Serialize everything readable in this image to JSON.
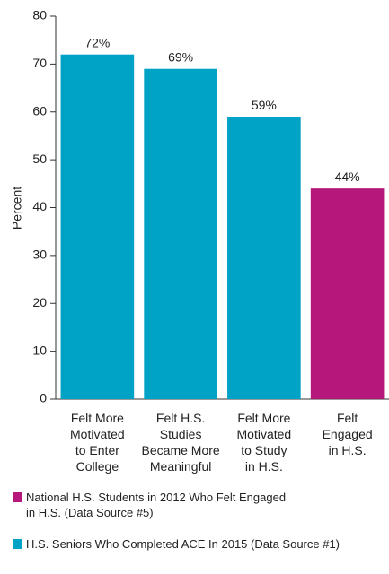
{
  "chart_data": {
    "type": "bar",
    "y_label": "Percent",
    "categories": [
      "Felt More\nMotivated\nto Enter\nCollege",
      "Felt H.S.\nStudies\nBecame More\nMeaningful",
      "Felt More\nMotivated\nto Study\nin H.S.",
      "Felt\nEngaged\nin H.S."
    ],
    "series": [
      {
        "name": "National H.S. Students in 2012 Who Felt Engaged\nin H.S. (Data Source #5)",
        "color": "#b5177a",
        "values": [
          null,
          null,
          null,
          44
        ],
        "value_labels": [
          null,
          null,
          null,
          "44%"
        ]
      },
      {
        "name": "H.S. Seniors Who Completed ACE In 2015 (Data Source #1)",
        "color": "#00a3c6",
        "values": [
          72,
          69,
          59,
          null
        ],
        "value_labels": [
          "72%",
          "69%",
          "59%",
          null
        ]
      }
    ],
    "ylim": [
      0,
      80
    ],
    "yticks": [
      0,
      10,
      20,
      30,
      40,
      50,
      60,
      70,
      80
    ],
    "grid": false
  }
}
